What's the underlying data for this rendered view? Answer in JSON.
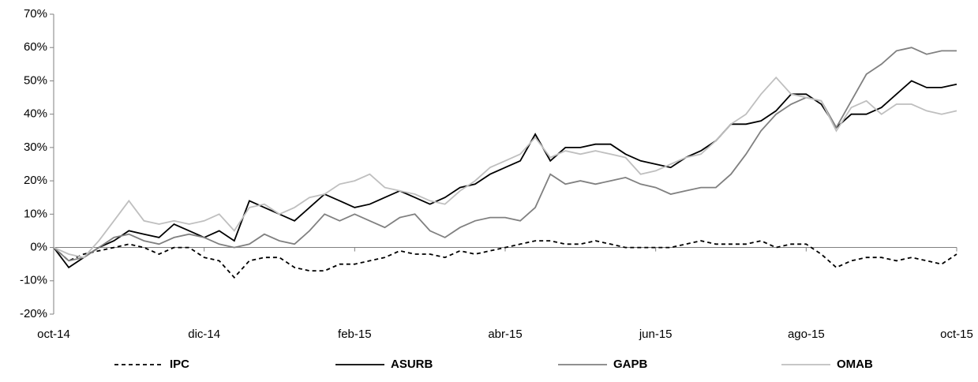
{
  "chart_data": {
    "type": "line",
    "categories": [
      "oct-14",
      null,
      null,
      null,
      null,
      null,
      null,
      null,
      null,
      null,
      "dic-14",
      null,
      null,
      null,
      null,
      null,
      null,
      null,
      null,
      null,
      "feb-15",
      null,
      null,
      null,
      null,
      null,
      null,
      null,
      null,
      null,
      "abr-15",
      null,
      null,
      null,
      null,
      null,
      null,
      null,
      null,
      null,
      "jun-15",
      null,
      null,
      null,
      null,
      null,
      null,
      null,
      null,
      null,
      "ago-15",
      null,
      null,
      null,
      null,
      null,
      null,
      null,
      null,
      null,
      "oct-15"
    ],
    "ylim": [
      -20,
      70
    ],
    "yticks": [
      {
        "value": -20,
        "label": "-20%"
      },
      {
        "value": -10,
        "label": "-10%"
      },
      {
        "value": 0,
        "label": "0%"
      },
      {
        "value": 10,
        "label": "10%"
      },
      {
        "value": 20,
        "label": "20%"
      },
      {
        "value": 30,
        "label": "30%"
      },
      {
        "value": 40,
        "label": "40%"
      },
      {
        "value": 50,
        "label": "50%"
      },
      {
        "value": 60,
        "label": "60%"
      },
      {
        "value": 70,
        "label": "70%"
      }
    ],
    "legend": "bottom",
    "series": [
      {
        "name": "IPC",
        "color": "#000000",
        "style": "dashed",
        "values": [
          0,
          -4,
          -2,
          -1,
          0,
          1,
          0,
          -2,
          0,
          0,
          -3,
          -4,
          -9,
          -4,
          -3,
          -3,
          -6,
          -7,
          -7,
          -5,
          -5,
          -4,
          -3,
          -1,
          -2,
          -2,
          -3,
          -1,
          -2,
          -1,
          0,
          1,
          2,
          2,
          1,
          1,
          2,
          1,
          0,
          0,
          0,
          0,
          1,
          2,
          1,
          1,
          1,
          2,
          0,
          1,
          1,
          -2,
          -6,
          -4,
          -3,
          -3,
          -4,
          -3,
          -4,
          -5,
          -2
        ]
      },
      {
        "name": "ASURB",
        "color": "#000000",
        "style": "solid",
        "values": [
          0,
          -6,
          -3,
          0,
          2,
          5,
          4,
          3,
          7,
          5,
          3,
          5,
          2,
          14,
          12,
          10,
          8,
          12,
          16,
          14,
          12,
          13,
          15,
          17,
          15,
          13,
          15,
          18,
          19,
          22,
          24,
          26,
          34,
          26,
          30,
          30,
          31,
          31,
          28,
          26,
          25,
          24,
          27,
          29,
          32,
          37,
          37,
          38,
          41,
          46,
          46,
          43,
          36,
          40,
          40,
          42,
          46,
          50,
          48,
          48,
          49
        ]
      },
      {
        "name": "GAPB",
        "color": "#808080",
        "style": "solid",
        "values": [
          0,
          -4,
          -3,
          0,
          3,
          4,
          2,
          1,
          3,
          4,
          3,
          1,
          0,
          1,
          4,
          2,
          1,
          5,
          10,
          8,
          10,
          8,
          6,
          9,
          10,
          5,
          3,
          6,
          8,
          9,
          9,
          8,
          12,
          22,
          19,
          20,
          19,
          20,
          21,
          19,
          18,
          16,
          17,
          18,
          18,
          22,
          28,
          35,
          40,
          43,
          45,
          44,
          36,
          44,
          52,
          55,
          59,
          60,
          58,
          59,
          59
        ]
      },
      {
        "name": "OMAB",
        "color": "#bfbfbf",
        "style": "solid",
        "values": [
          0,
          -2,
          -3,
          2,
          8,
          14,
          8,
          7,
          8,
          7,
          8,
          10,
          5,
          12,
          13,
          10,
          12,
          15,
          16,
          19,
          20,
          22,
          18,
          17,
          16,
          14,
          13,
          17,
          20,
          24,
          26,
          28,
          33,
          27,
          29,
          28,
          29,
          28,
          27,
          22,
          23,
          25,
          27,
          28,
          32,
          37,
          40,
          46,
          51,
          46,
          45,
          44,
          35,
          42,
          44,
          40,
          43,
          43,
          41,
          40,
          41
        ]
      }
    ]
  }
}
